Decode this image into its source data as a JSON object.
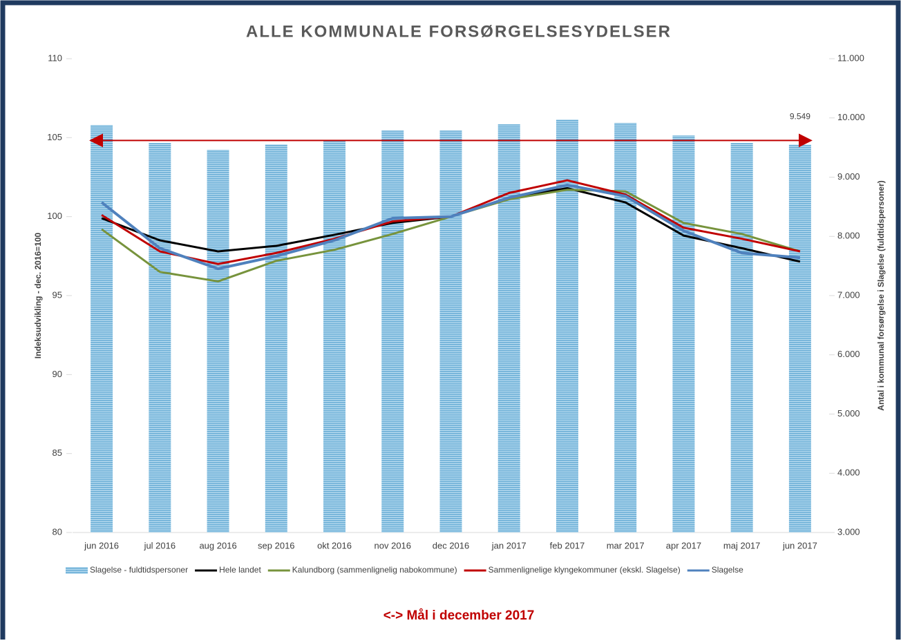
{
  "chart_data": {
    "type": "bar_line",
    "title": "ALLE KOMMUNALE FORSØRGELSESYDELSER",
    "ylabel": "Indeksudvikling - dec. 2016=100",
    "y2label": "Antal i kommunal forsørgelse i Slagelse (fuldtidspersoner)",
    "categories": [
      "jun 2016",
      "jul 2016",
      "aug 2016",
      "sep 2016",
      "okt 2016",
      "nov 2016",
      "dec 2016",
      "jan 2017",
      "feb 2017",
      "mar 2017",
      "apr 2017",
      "maj 2017",
      "jun 2017"
    ],
    "ylim": [
      80,
      110
    ],
    "yticks": [
      80,
      85,
      90,
      95,
      100,
      105,
      110
    ],
    "y2lim": [
      3000,
      11000
    ],
    "y2ticks": [
      {
        "value": 3000,
        "label": "3.000"
      },
      {
        "value": 4000,
        "label": "4.000"
      },
      {
        "value": 5000,
        "label": "5.000"
      },
      {
        "value": 6000,
        "label": "6.000"
      },
      {
        "value": 7000,
        "label": "7.000"
      },
      {
        "value": 8000,
        "label": "8.000"
      },
      {
        "value": 9000,
        "label": "9.000"
      },
      {
        "value": 10000,
        "label": "10.000"
      },
      {
        "value": 11000,
        "label": "11.000"
      }
    ],
    "series": [
      {
        "name": "Slagelse - fuldtidspersoner",
        "type": "bar",
        "axis": "y2",
        "color": "#6aaed6",
        "values": [
          9880,
          9577,
          9461,
          9554,
          9624,
          9787,
          9787,
          9892,
          9974,
          9916,
          9706,
          9577,
          9549
        ],
        "value_labels": [
          null,
          null,
          null,
          null,
          null,
          null,
          null,
          null,
          null,
          null,
          null,
          null,
          "9.549"
        ]
      },
      {
        "name": "Hele landet",
        "type": "line",
        "color": "#000000",
        "values": [
          99.9,
          98.5,
          97.8,
          98.15,
          98.85,
          99.6,
          100,
          101.2,
          101.8,
          100.9,
          98.8,
          98.0,
          97.15
        ]
      },
      {
        "name": "Kalundborg (sammenlignelig nabokommune)",
        "type": "line",
        "color": "#77933c",
        "values": [
          99.2,
          96.5,
          95.9,
          97.2,
          97.9,
          98.9,
          100,
          101.1,
          101.7,
          101.6,
          99.6,
          98.9,
          97.8
        ]
      },
      {
        "name": "Sammenlignelige klyngekommuner (ekskl. Slagelse)",
        "type": "line",
        "color": "#c00000",
        "values": [
          100.1,
          97.8,
          97.0,
          97.7,
          98.6,
          99.7,
          100,
          101.5,
          102.3,
          101.4,
          99.3,
          98.6,
          97.8
        ]
      },
      {
        "name": "Slagelse",
        "type": "line",
        "color": "#4f81bd",
        "values": [
          100.9,
          98.0,
          96.7,
          97.5,
          98.5,
          99.9,
          100,
          101.2,
          102.0,
          101.3,
          99.1,
          97.7,
          97.4
        ]
      }
    ],
    "target": {
      "label": "<-> Mål i december 2017",
      "value": 9620,
      "axis": "y2",
      "color": "#c00000"
    }
  }
}
